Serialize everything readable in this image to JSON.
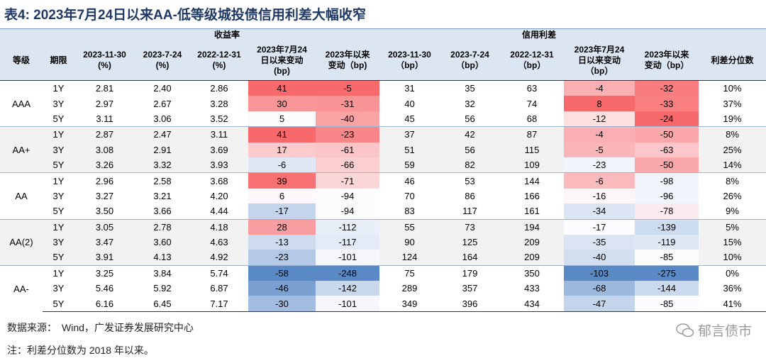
{
  "title": "表4:  2023年7月24日以来AA-低等级城投债信用利差大幅收窄",
  "header": {
    "group_labels": [
      "收益率",
      "信用利差"
    ],
    "columns": [
      [
        "等级"
      ],
      [
        "期限"
      ],
      [
        "2023-11-30",
        "(%)"
      ],
      [
        "2023-7-24",
        "(%)"
      ],
      [
        "2022-12-31",
        "(%)"
      ],
      [
        "2023年7月24",
        "日以来变动",
        "(bp)"
      ],
      [
        "2023年以来",
        "变动（bp)"
      ],
      [
        "2023-11-30",
        "（bp）"
      ],
      [
        "2023-7-24",
        "（bp）"
      ],
      [
        "2022-12-31",
        "（bp）"
      ],
      [
        "2023年7月24",
        "日以来变动",
        "（bp）"
      ],
      [
        "2023年以来",
        "变动（bp）"
      ],
      [
        "利差分位数"
      ]
    ]
  },
  "groups": [
    {
      "grade": "AAA",
      "rows": [
        [
          "1Y",
          "2.81",
          "2.40",
          "2.86",
          41,
          -5,
          31,
          35,
          63,
          -4,
          -32,
          "10%"
        ],
        [
          "3Y",
          "2.97",
          "2.67",
          "3.28",
          30,
          -31,
          40,
          32,
          74,
          8,
          -33,
          "37%"
        ],
        [
          "5Y",
          "3.11",
          "3.06",
          "3.52",
          5,
          -40,
          45,
          56,
          68,
          -12,
          -24,
          "19%"
        ]
      ]
    },
    {
      "grade": "AA+",
      "rows": [
        [
          "1Y",
          "2.87",
          "2.47",
          "3.11",
          41,
          -23,
          37,
          42,
          87,
          -4,
          -50,
          "8%"
        ],
        [
          "3Y",
          "3.08",
          "2.91",
          "3.69",
          17,
          -61,
          51,
          56,
          115,
          -5,
          -63,
          "25%"
        ],
        [
          "5Y",
          "3.26",
          "3.32",
          "3.93",
          -6,
          -66,
          59,
          82,
          109,
          -23,
          -50,
          "14%"
        ]
      ]
    },
    {
      "grade": "AA",
      "rows": [
        [
          "1Y",
          "2.96",
          "2.58",
          "3.68",
          39,
          -71,
          46,
          53,
          144,
          -6,
          -98,
          "8%"
        ],
        [
          "3Y",
          "3.27",
          "3.21",
          "4.20",
          6,
          -94,
          70,
          86,
          166,
          -16,
          -96,
          "26%"
        ],
        [
          "5Y",
          "3.50",
          "3.66",
          "4.44",
          -17,
          -94,
          83,
          117,
          161,
          -34,
          -78,
          "9%"
        ]
      ]
    },
    {
      "grade": "AA(2)",
      "rows": [
        [
          "1Y",
          "3.05",
          "2.78",
          "4.18",
          28,
          -112,
          55,
          73,
          194,
          -17,
          -139,
          "5%"
        ],
        [
          "3Y",
          "3.47",
          "3.60",
          "4.63",
          -13,
          -117,
          90,
          125,
          209,
          -35,
          -119,
          "15%"
        ],
        [
          "5Y",
          "3.91",
          "4.13",
          "4.92",
          -23,
          -101,
          124,
          164,
          209,
          -40,
          -85,
          "10%"
        ]
      ]
    },
    {
      "grade": "AA-",
      "rows": [
        [
          "1Y",
          "3.25",
          "3.84",
          "5.74",
          -58,
          -248,
          75,
          179,
          350,
          -103,
          -275,
          "0%"
        ],
        [
          "3Y",
          "5.46",
          "5.92",
          "6.87",
          -46,
          -142,
          289,
          357,
          433,
          -68,
          -144,
          "36%"
        ],
        [
          "5Y",
          "6.16",
          "6.45",
          "7.17",
          -30,
          -101,
          349,
          396,
          434,
          -47,
          -85,
          "41%"
        ]
      ]
    }
  ],
  "footer": {
    "source": "数据来源：　Wind，广发证券发展研究中心",
    "note": "注：利差分位数为 2018 年以来。",
    "watermark": "郁言债市"
  }
}
